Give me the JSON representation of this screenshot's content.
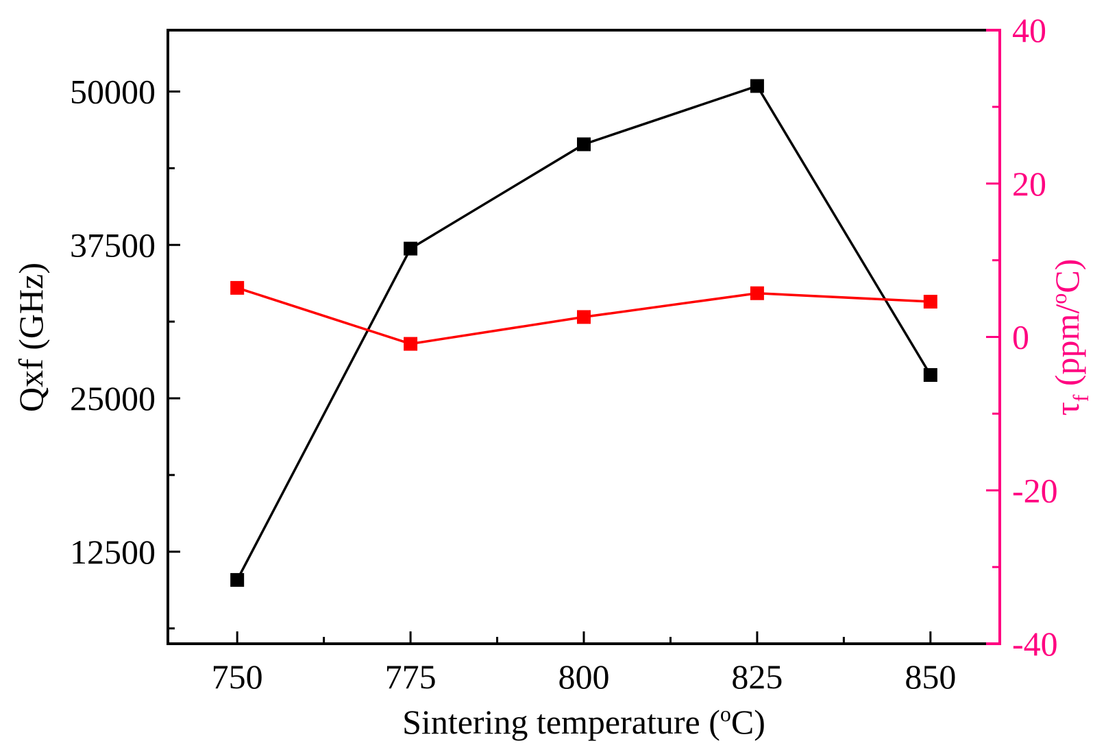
{
  "chart_data": {
    "type": "line",
    "title": "",
    "xlabel": "Sintering temperature (°C)",
    "xlabel_parts": {
      "main": "Sintering temperature (",
      "sup": "o",
      "tail": "C)"
    },
    "ylabel_left": "Qxf (GHz)",
    "ylabel_right": "τf (ppm/°C)",
    "ylabel_right_parts": {
      "tau": "τ",
      "sub": "f",
      "main": " (ppm/",
      "sup": "o",
      "tail": "C)"
    },
    "x": [
      750,
      775,
      800,
      825,
      850
    ],
    "xlim": [
      740,
      860
    ],
    "x_ticks": [
      750,
      775,
      800,
      825,
      850
    ],
    "x_tick_labels": [
      "750",
      "775",
      "800",
      "825",
      "850"
    ],
    "x_minor_ticks": [
      762.5,
      787.5,
      812.5,
      837.5
    ],
    "ylim_left": [
      5000,
      55000
    ],
    "y_left_ticks": [
      12500,
      25000,
      37500,
      50000
    ],
    "y_left_tick_labels": [
      "12500",
      "25000",
      "37500",
      "50000"
    ],
    "y_left_minor_ticks": [
      6250,
      18750,
      31250,
      43750
    ],
    "ylim_right": [
      -40,
      40
    ],
    "y_right_ticks": [
      -40,
      -20,
      0,
      20,
      40
    ],
    "y_right_tick_labels": [
      "-40",
      "-20",
      "0",
      "20",
      "40"
    ],
    "y_right_minor_ticks": [
      -30,
      -10,
      10,
      30
    ],
    "grid": false,
    "legend": "none",
    "series": [
      {
        "name": "Qxf",
        "axis": "left",
        "color": "#000000",
        "marker": "square",
        "values": [
          10200,
          37200,
          45700,
          50450,
          26900
        ]
      },
      {
        "name": "tau_f",
        "axis": "right",
        "color": "#ff0000",
        "marker": "square",
        "values": [
          6.4,
          -0.9,
          2.6,
          5.7,
          4.6
        ]
      }
    ],
    "colors": {
      "left_axis": "#000000",
      "right_axis": "#ff0080"
    }
  }
}
